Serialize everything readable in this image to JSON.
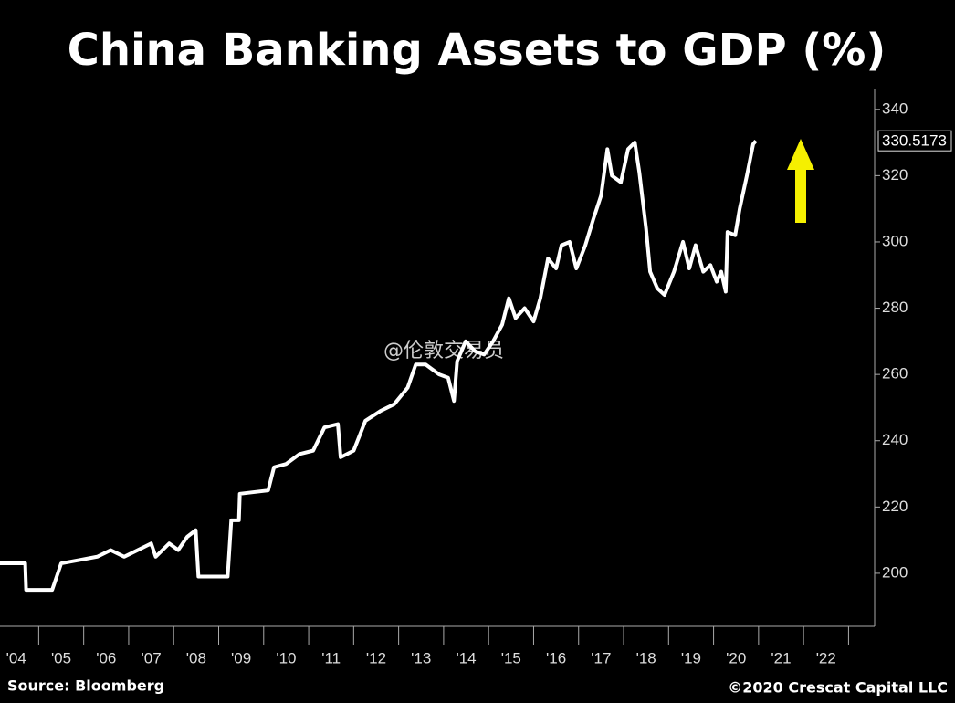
{
  "chart_data": {
    "type": "line",
    "title": "China Banking Assets to GDP (%)",
    "source": "Source: Bloomberg",
    "copyright": "©2020 Crescat Capital LLC",
    "watermark": "@伦敦交易员",
    "xlim": [
      2004.14,
      2023.58
    ],
    "ylim": [
      184,
      346
    ],
    "xticks": [
      {
        "value": 2004.5,
        "label": "'04"
      },
      {
        "value": 2005.5,
        "label": "'05"
      },
      {
        "value": 2006.5,
        "label": "'06"
      },
      {
        "value": 2007.5,
        "label": "'07"
      },
      {
        "value": 2008.5,
        "label": "'08"
      },
      {
        "value": 2009.5,
        "label": "'09"
      },
      {
        "value": 2010.5,
        "label": "'10"
      },
      {
        "value": 2011.5,
        "label": "'11"
      },
      {
        "value": 2012.5,
        "label": "'12"
      },
      {
        "value": 2013.5,
        "label": "'13"
      },
      {
        "value": 2014.5,
        "label": "'14"
      },
      {
        "value": 2015.5,
        "label": "'15"
      },
      {
        "value": 2016.5,
        "label": "'16"
      },
      {
        "value": 2017.5,
        "label": "'17"
      },
      {
        "value": 2018.5,
        "label": "'18"
      },
      {
        "value": 2019.5,
        "label": "'19"
      },
      {
        "value": 2020.5,
        "label": "'20"
      },
      {
        "value": 2021.5,
        "label": "'21"
      },
      {
        "value": 2022.5,
        "label": "'22"
      }
    ],
    "yticks": [
      200,
      220,
      240,
      260,
      280,
      300,
      320,
      340
    ],
    "series": [
      {
        "color": "#ffffff",
        "x": [
          2004.1,
          2004.7,
          2004.72,
          2005.3,
          2005.5,
          2005.9,
          2006.3,
          2006.6,
          2006.9,
          2007.2,
          2007.5,
          2007.6,
          2007.9,
          2008.1,
          2008.3,
          2008.49,
          2008.55,
          2009.2,
          2009.28,
          2009.45,
          2009.47,
          2010.1,
          2010.23,
          2010.5,
          2010.8,
          2011.1,
          2011.35,
          2011.65,
          2011.71,
          2012.0,
          2012.26,
          2012.6,
          2012.9,
          2013.2,
          2013.38,
          2013.6,
          2013.9,
          2014.1,
          2014.23,
          2014.3,
          2014.49,
          2014.7,
          2014.9,
          2015.1,
          2015.3,
          2015.45,
          2015.6,
          2015.8,
          2016.0,
          2016.15,
          2016.32,
          2016.5,
          2016.62,
          2016.8,
          2016.95,
          2017.15,
          2017.33,
          2017.5,
          2017.64,
          2017.74,
          2017.94,
          2018.1,
          2018.25,
          2018.35,
          2018.5,
          2018.59,
          2018.75,
          2018.91,
          2019.12,
          2019.32,
          2019.46,
          2019.6,
          2019.77,
          2019.93,
          2020.07,
          2020.17,
          2020.27,
          2020.31,
          2020.48,
          2020.58,
          2020.74,
          2020.88,
          2020.94
        ],
        "values": [
          203,
          203,
          195,
          195,
          203,
          204,
          205,
          207,
          205,
          207,
          209,
          205,
          209,
          207,
          211,
          213,
          199,
          199,
          216,
          216,
          224,
          225,
          232,
          233,
          236,
          237,
          244,
          245,
          235,
          237,
          246,
          249,
          251,
          256,
          263,
          263,
          260,
          259,
          252,
          264,
          270,
          267,
          266,
          270,
          275,
          283,
          277,
          280,
          276,
          283,
          295,
          292,
          299,
          300,
          292,
          299,
          307,
          314,
          328,
          320,
          318,
          328,
          330,
          321,
          304,
          291,
          286,
          284,
          291,
          300,
          292,
          299,
          291,
          293,
          288,
          291,
          285,
          303,
          302,
          310,
          320,
          329.5,
          330.5173
        ]
      }
    ]
  }
}
